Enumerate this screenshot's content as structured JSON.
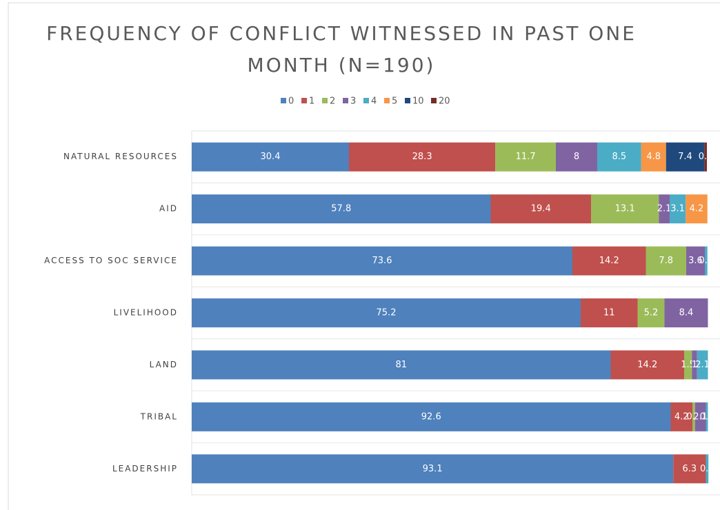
{
  "chart_data": {
    "type": "stacked-bar-horizontal",
    "title": "FREQUENCY OF CONFLICT WITNESSED IN PAST ONE MONTH (N=190)",
    "categories": [
      "NATURAL RESOURCES",
      "AID",
      "ACCESS TO SOC SERVICE",
      "LIVELIHOOD",
      "LAND",
      "TRIBAL",
      "LEADERSHIP"
    ],
    "xlim": [
      0,
      100
    ],
    "legend": "top",
    "series": [
      {
        "name": "0",
        "color": "#4f81bd",
        "values": [
          30.4,
          57.8,
          73.6,
          75.2,
          81,
          92.6,
          93.1
        ]
      },
      {
        "name": "1",
        "color": "#c0504d",
        "values": [
          28.3,
          19.4,
          14.2,
          11,
          14.2,
          4.2,
          6.3
        ]
      },
      {
        "name": "2",
        "color": "#9bbb59",
        "values": [
          11.7,
          13.1,
          7.8,
          5.2,
          1.5,
          0.5,
          null
        ]
      },
      {
        "name": "3",
        "color": "#8064a2",
        "values": [
          8,
          2.1,
          3.6,
          8.4,
          1,
          2.1,
          null
        ]
      },
      {
        "name": "4",
        "color": "#4bacc6",
        "values": [
          8.5,
          3.1,
          0.5,
          null,
          2.1,
          0.4,
          0.5
        ]
      },
      {
        "name": "5",
        "color": "#f79646",
        "values": [
          4.8,
          4.2,
          null,
          null,
          null,
          null,
          null
        ]
      },
      {
        "name": "10",
        "color": "#1f497d",
        "values": [
          7.4,
          null,
          null,
          null,
          null,
          null,
          null
        ]
      },
      {
        "name": "20",
        "color": "#772c2a",
        "values": [
          0.5,
          null,
          null,
          null,
          null,
          null,
          null
        ]
      }
    ]
  }
}
